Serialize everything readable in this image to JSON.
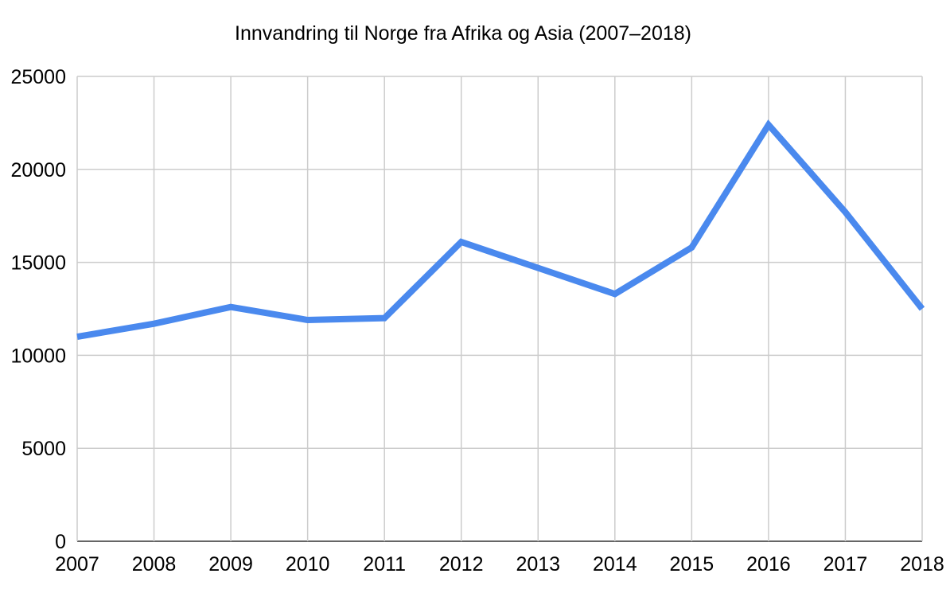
{
  "chart_data": {
    "type": "line",
    "title": "Innvandring til Norge fra Afrika og Asia (2007–2018)",
    "xlabel": "",
    "ylabel": "",
    "categories": [
      "2007",
      "2008",
      "2009",
      "2010",
      "2011",
      "2012",
      "2013",
      "2014",
      "2015",
      "2016",
      "2017",
      "2018"
    ],
    "series": [
      {
        "name": "Innvandring",
        "color": "#4a89ee",
        "values": [
          11000,
          11700,
          12600,
          11900,
          12000,
          16100,
          14700,
          13300,
          15800,
          22400,
          17700,
          12500
        ]
      }
    ],
    "ylim": [
      0,
      25000
    ],
    "yticks": [
      "0",
      "5000",
      "10000",
      "15000",
      "20000",
      "25000"
    ],
    "grid": true,
    "legend": "none"
  }
}
